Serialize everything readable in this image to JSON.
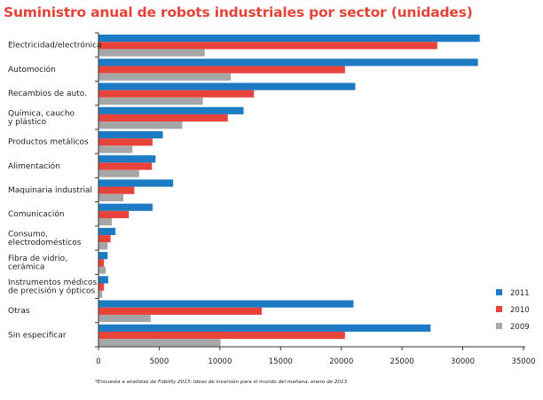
{
  "chart_data": {
    "type": "bar",
    "orientation": "horizontal",
    "title": "Suministro anual de robots industriales por sector (unidades)",
    "xlabel": "",
    "ylabel": "",
    "xlim": [
      0,
      35000
    ],
    "xticks": [
      0,
      5000,
      10000,
      15000,
      20000,
      25000,
      30000,
      35000
    ],
    "grid": false,
    "legend_position": "bottom-right",
    "categories": [
      [
        "Electricidad/electrónica"
      ],
      [
        "Automoción"
      ],
      [
        "Recambios de auto."
      ],
      [
        "Química, caucho",
        "y plástico"
      ],
      [
        "Productos metálicos"
      ],
      [
        "Alimentación"
      ],
      [
        "Maquinaria industrial"
      ],
      [
        "Comunicación"
      ],
      [
        "Consumo,",
        "electrodomésticos"
      ],
      [
        "Fibra de vidrio,",
        "cerámica"
      ],
      [
        "Instrumentos médicos",
        "de precisión y ópticos"
      ],
      [
        "Otras"
      ],
      [
        "Sin especificar"
      ]
    ],
    "series": [
      {
        "name": "2011",
        "color": "#1c7bc2",
        "values": [
          31400,
          31250,
          21150,
          11950,
          5300,
          4700,
          6150,
          4450,
          1400,
          750,
          800,
          21000,
          27350
        ]
      },
      {
        "name": "2010",
        "color": "#e8433a",
        "values": [
          27900,
          20300,
          12800,
          10650,
          4450,
          4400,
          2950,
          2500,
          1000,
          450,
          450,
          13450,
          20300
        ]
      },
      {
        "name": "2009",
        "color": "#a6a6a6",
        "values": [
          8750,
          10900,
          8600,
          6900,
          2800,
          3350,
          2050,
          1100,
          750,
          600,
          300,
          4300,
          10050
        ]
      }
    ],
    "footnote": "*Encuesta a analistas de Fidelity 2013: Ideas de inversión para el mundo del mañana, enero de 2013."
  },
  "colors": {
    "title": "#e2443a",
    "axis": "#333333"
  }
}
